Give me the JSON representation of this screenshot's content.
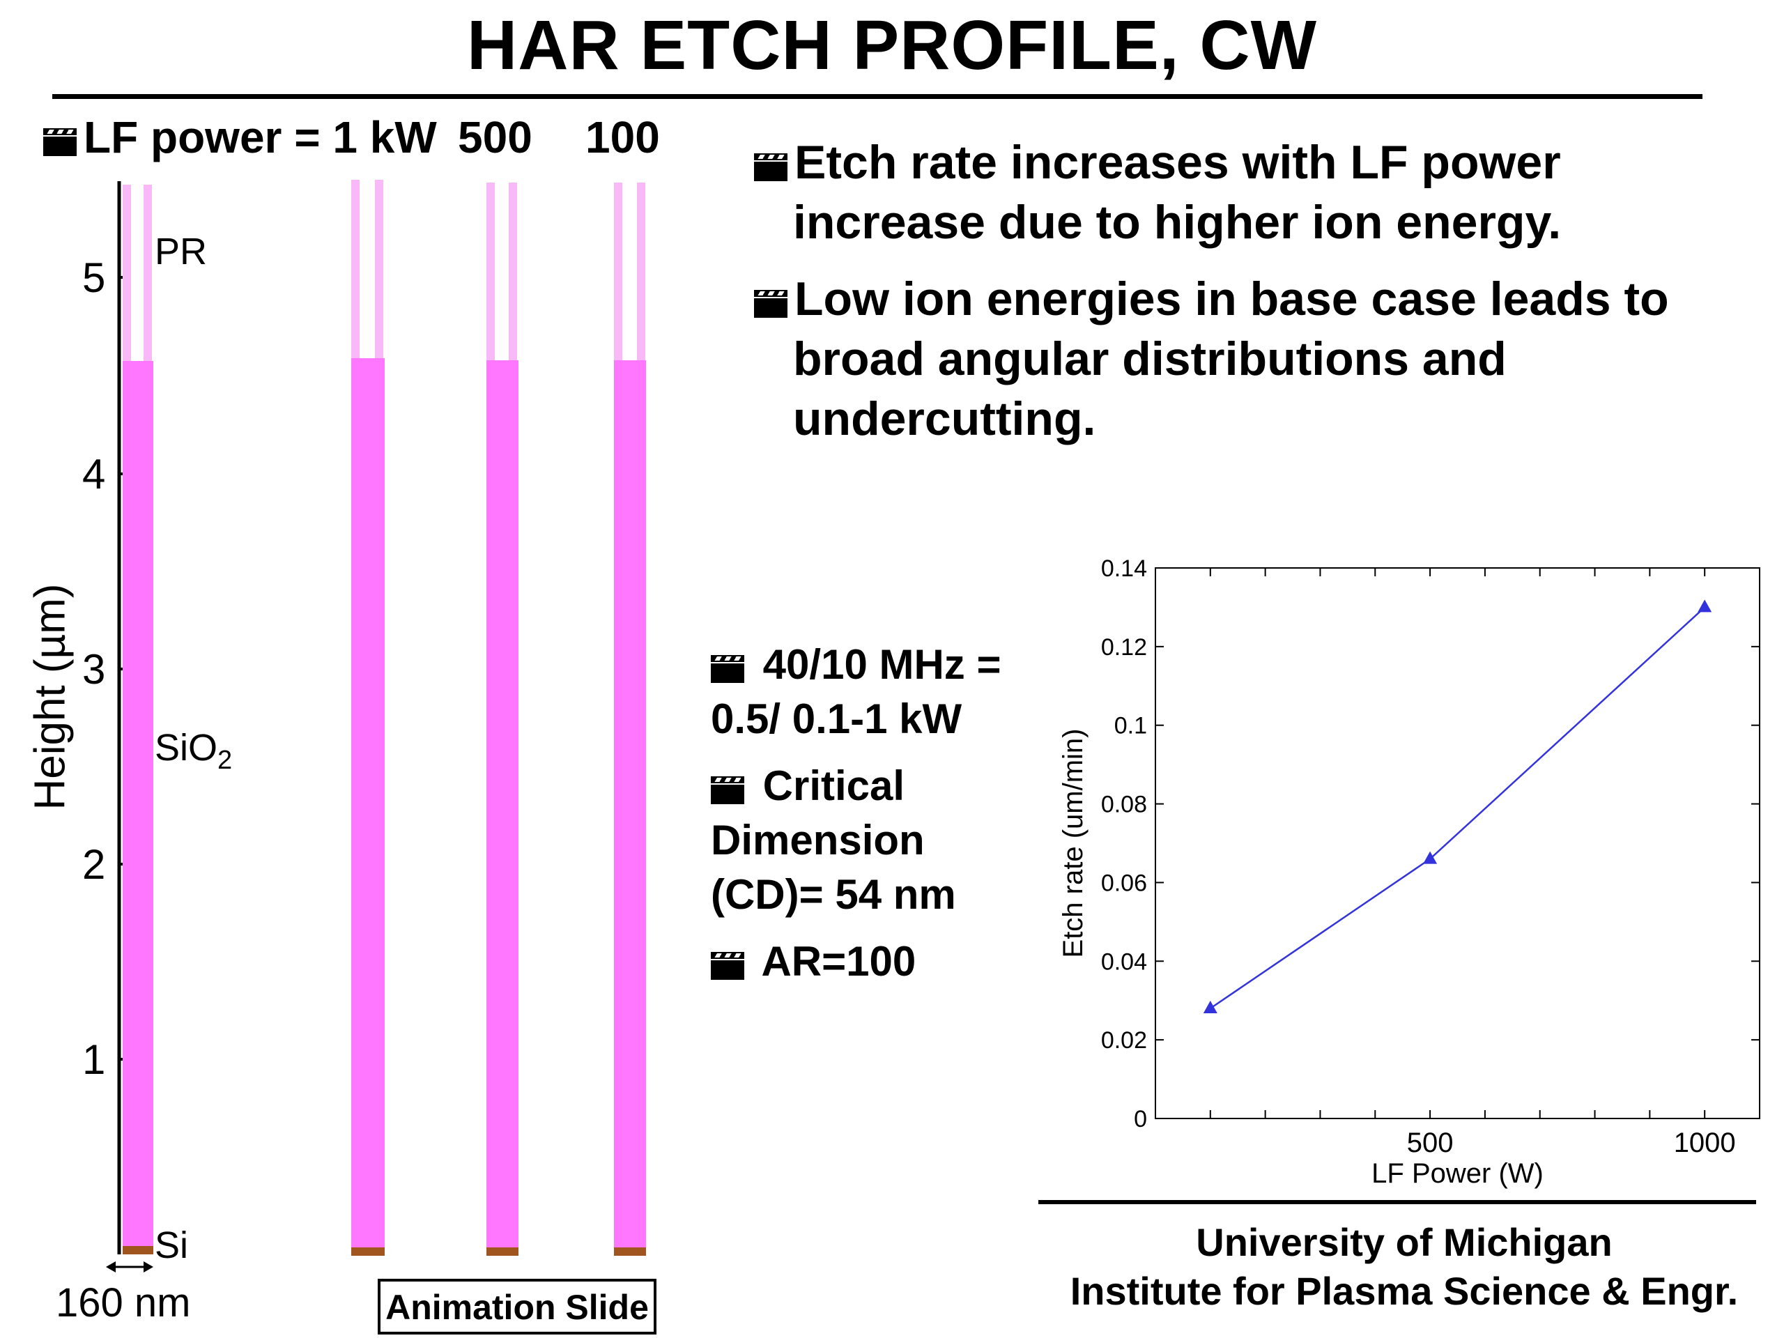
{
  "slide": {
    "title": "HAR ETCH PROFILE, CW",
    "lf_power_label": "LF power = 1 kW",
    "columns": [
      "500",
      "100"
    ],
    "y_axis_label": "Height (µm)",
    "y_ticks": [
      "5",
      "4",
      "3",
      "2",
      "1"
    ],
    "materials": {
      "pr": "PR",
      "sio2": "SiO",
      "sio2_sub": "2",
      "si": "Si"
    },
    "width_label": "160 nm",
    "animation_label": "Animation Slide",
    "bullets_right": [
      "Etch rate increases with LF power increase due to higher ion energy.",
      "Low ion energies in base case leads to broad angular distributions and undercutting."
    ],
    "bullets_mid": [
      "40/10 MHz = 0.5/ 0.1-1 kW",
      "Critical Dimension (CD)= 54 nm",
      "AR=100"
    ],
    "institution": [
      "University of Michigan",
      "Institute for Plasma Science & Engr."
    ],
    "colors": {
      "sio2": "#ff77ff",
      "pr": "#f9b8f7",
      "si": "#a0541e",
      "series": "#3333dd"
    }
  },
  "chart_data": {
    "type": "line",
    "xlabel": "LF Power (W)",
    "ylabel": "Etch rate (um/min)",
    "xlim": [
      0,
      1100
    ],
    "ylim": [
      0,
      0.14
    ],
    "xticks": [
      500,
      1000
    ],
    "yticks": [
      0,
      0.02,
      0.04,
      0.06,
      0.08,
      0.1,
      0.12,
      0.14
    ],
    "ytick_labels": [
      "0",
      "0.02",
      "0.04",
      "0.06",
      "0.08",
      "0.1",
      "0.12",
      "0.14"
    ],
    "series": [
      {
        "x": [
          100,
          500,
          1000
        ],
        "y": [
          0.028,
          0.066,
          0.13
        ],
        "marker": "triangle"
      }
    ]
  }
}
